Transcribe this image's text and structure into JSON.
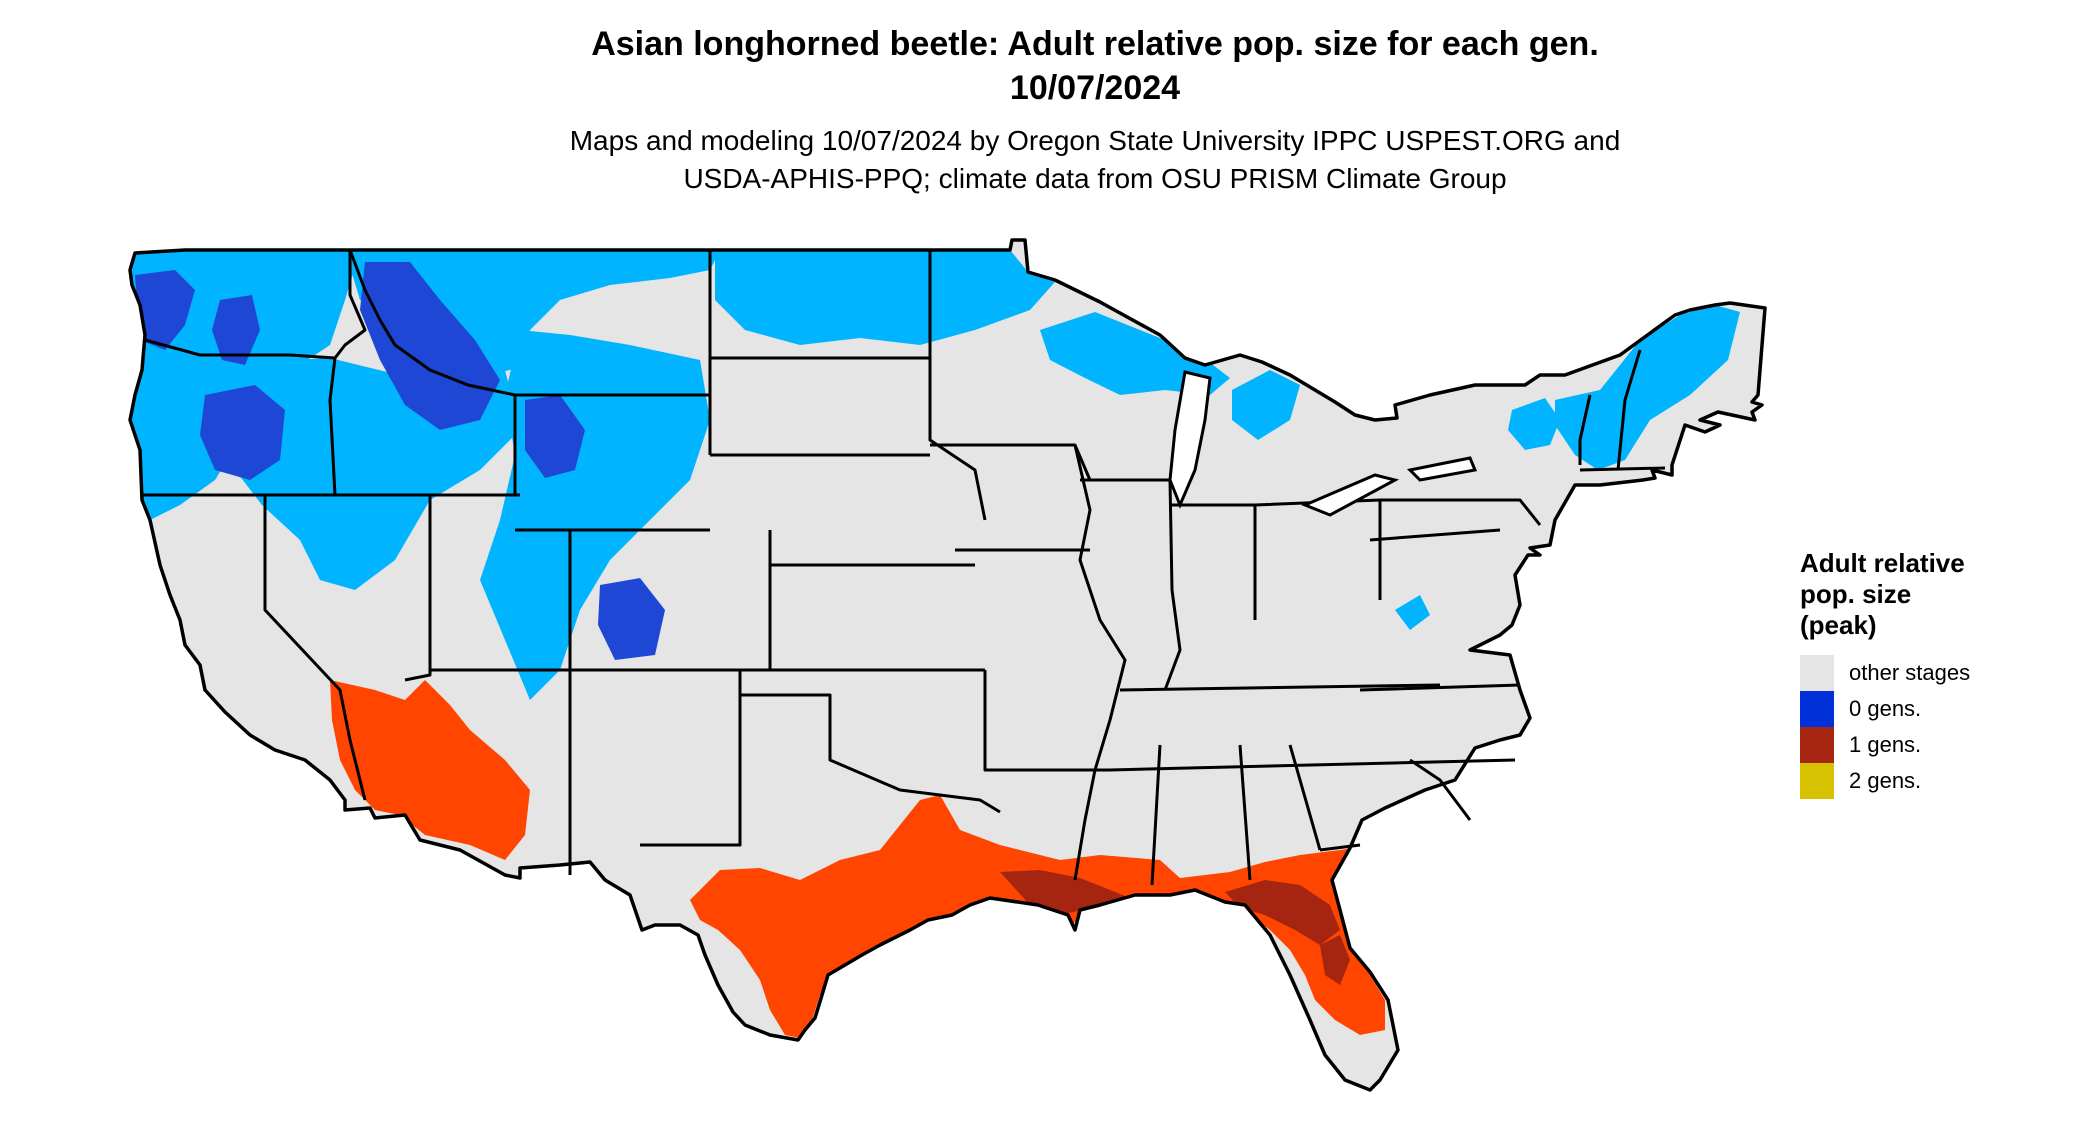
{
  "title": {
    "line1": "Asian longhorned beetle: Adult relative pop. size for each gen.",
    "line2": "10/07/2024"
  },
  "subtitle": {
    "line1": "Maps and modeling 10/07/2024 by Oregon State University IPPC USPEST.ORG and",
    "line2": "USDA-APHIS-PPQ; climate data from OSU PRISM Climate Group"
  },
  "map": {
    "region": "Contiguous United States",
    "state_borders_color": "#000000",
    "zones": [
      {
        "category": "0 gens.",
        "color": "#00b4ff",
        "areas": [
          "Washington",
          "Oregon",
          "Idaho",
          "Montana",
          "Wyoming",
          "Colorado",
          "northern Minnesota",
          "Upper Michigan",
          "northern New England",
          "Adirondacks"
        ]
      },
      {
        "category": "0 gens.",
        "color": "#1f47d6",
        "areas": [
          "Cascades",
          "Northern Rockies",
          "Yellowstone"
        ]
      },
      {
        "category": "1 gens.",
        "color": "#ff4500",
        "areas": [
          "southern Arizona",
          "southeastern California",
          "Texas Gulf Coast",
          "Louisiana",
          "Florida"
        ]
      },
      {
        "category": "1 gens.",
        "color": "#a52510",
        "areas": [
          "Louisiana coast",
          "Florida panhandle"
        ]
      }
    ]
  },
  "legend": {
    "title_lines": [
      "Adult relative",
      "pop. size",
      "(peak)"
    ],
    "items": [
      {
        "label": "other stages",
        "color": "#e5e5e5"
      },
      {
        "label": "0 gens.",
        "color": "#0030d8"
      },
      {
        "label": "1 gens.",
        "color": "#a52510"
      },
      {
        "label": "2 gens.",
        "color": "#d6c200"
      }
    ]
  }
}
